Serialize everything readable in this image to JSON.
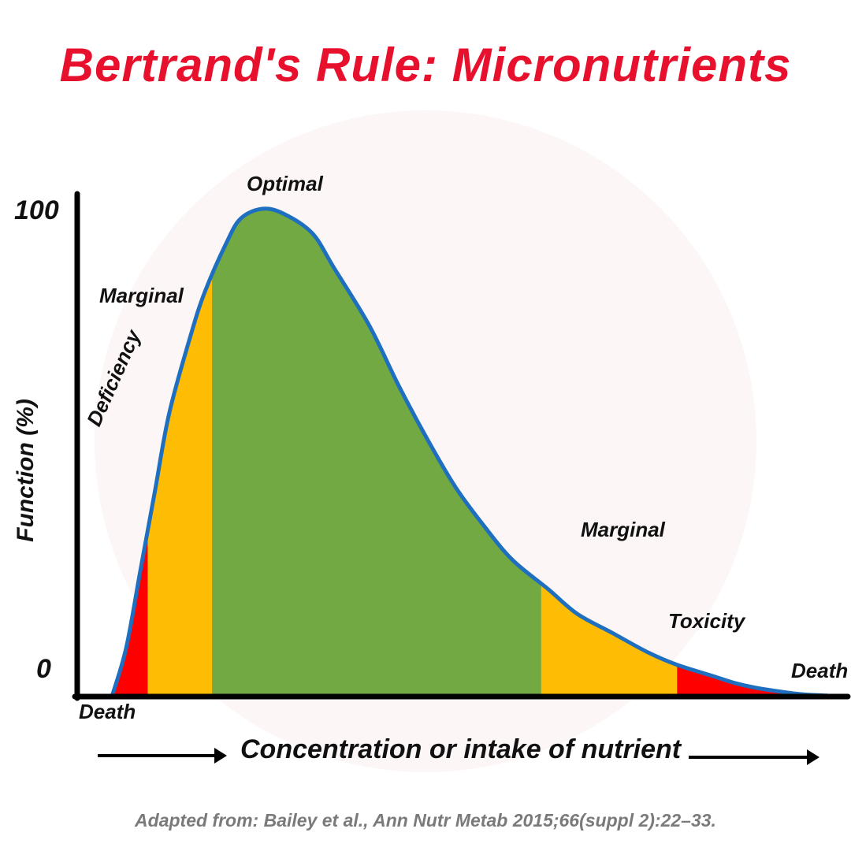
{
  "title": "Bertrand's Rule: Micronutrients",
  "source": "Adapted from: Bailey et al., Ann Nutr Metab 2015;66(suppl 2):22–33.",
  "colors": {
    "title": "#e8112d",
    "optimal": "#72a943",
    "marginal": "#ffbc04",
    "toxic": "#ff0000",
    "curve": "#1f6fc0",
    "axis": "#000000"
  },
  "chart_data": {
    "type": "area",
    "title": "Bertrand's Rule: Micronutrients",
    "xlabel": "Concentration or intake of nutrient",
    "ylabel": "Function (%)",
    "y_ticks": [
      "100",
      "0"
    ],
    "ylim": [
      0,
      100
    ],
    "x": [
      0,
      2,
      4,
      6,
      8,
      11,
      13,
      16,
      18,
      21,
      24,
      28,
      31,
      36,
      40,
      44,
      48,
      52,
      56,
      61,
      65,
      70,
      75,
      79,
      84,
      87,
      90,
      94,
      97,
      100
    ],
    "y": [
      0,
      10,
      26,
      42,
      58,
      74,
      83,
      93,
      98,
      100,
      99,
      95,
      88,
      76,
      64,
      53,
      43,
      35,
      28,
      22,
      17,
      13,
      9,
      6.5,
      4.2,
      2.8,
      1.8,
      0.9,
      0.4,
      0.2
    ],
    "zones": [
      {
        "label": "Death",
        "start": 0,
        "end": 0,
        "color": "#ff0000"
      },
      {
        "label": "Deficiency",
        "start": 0,
        "end": 5,
        "color": "#ff0000"
      },
      {
        "label": "Marginal",
        "start": 5,
        "end": 14,
        "color": "#ffbc04"
      },
      {
        "label": "Optimal",
        "start": 14,
        "end": 60,
        "color": "#72a943"
      },
      {
        "label": "Marginal",
        "start": 60,
        "end": 79,
        "color": "#ffbc04"
      },
      {
        "label": "Toxicity",
        "start": 79,
        "end": 100,
        "color": "#ff0000"
      },
      {
        "label": "Death",
        "start": 100,
        "end": 100,
        "color": "#ff0000"
      }
    ],
    "annotations": [
      "Optimal",
      "Marginal",
      "Deficiency",
      "Marginal",
      "Toxicity",
      "Death",
      "Death"
    ]
  }
}
